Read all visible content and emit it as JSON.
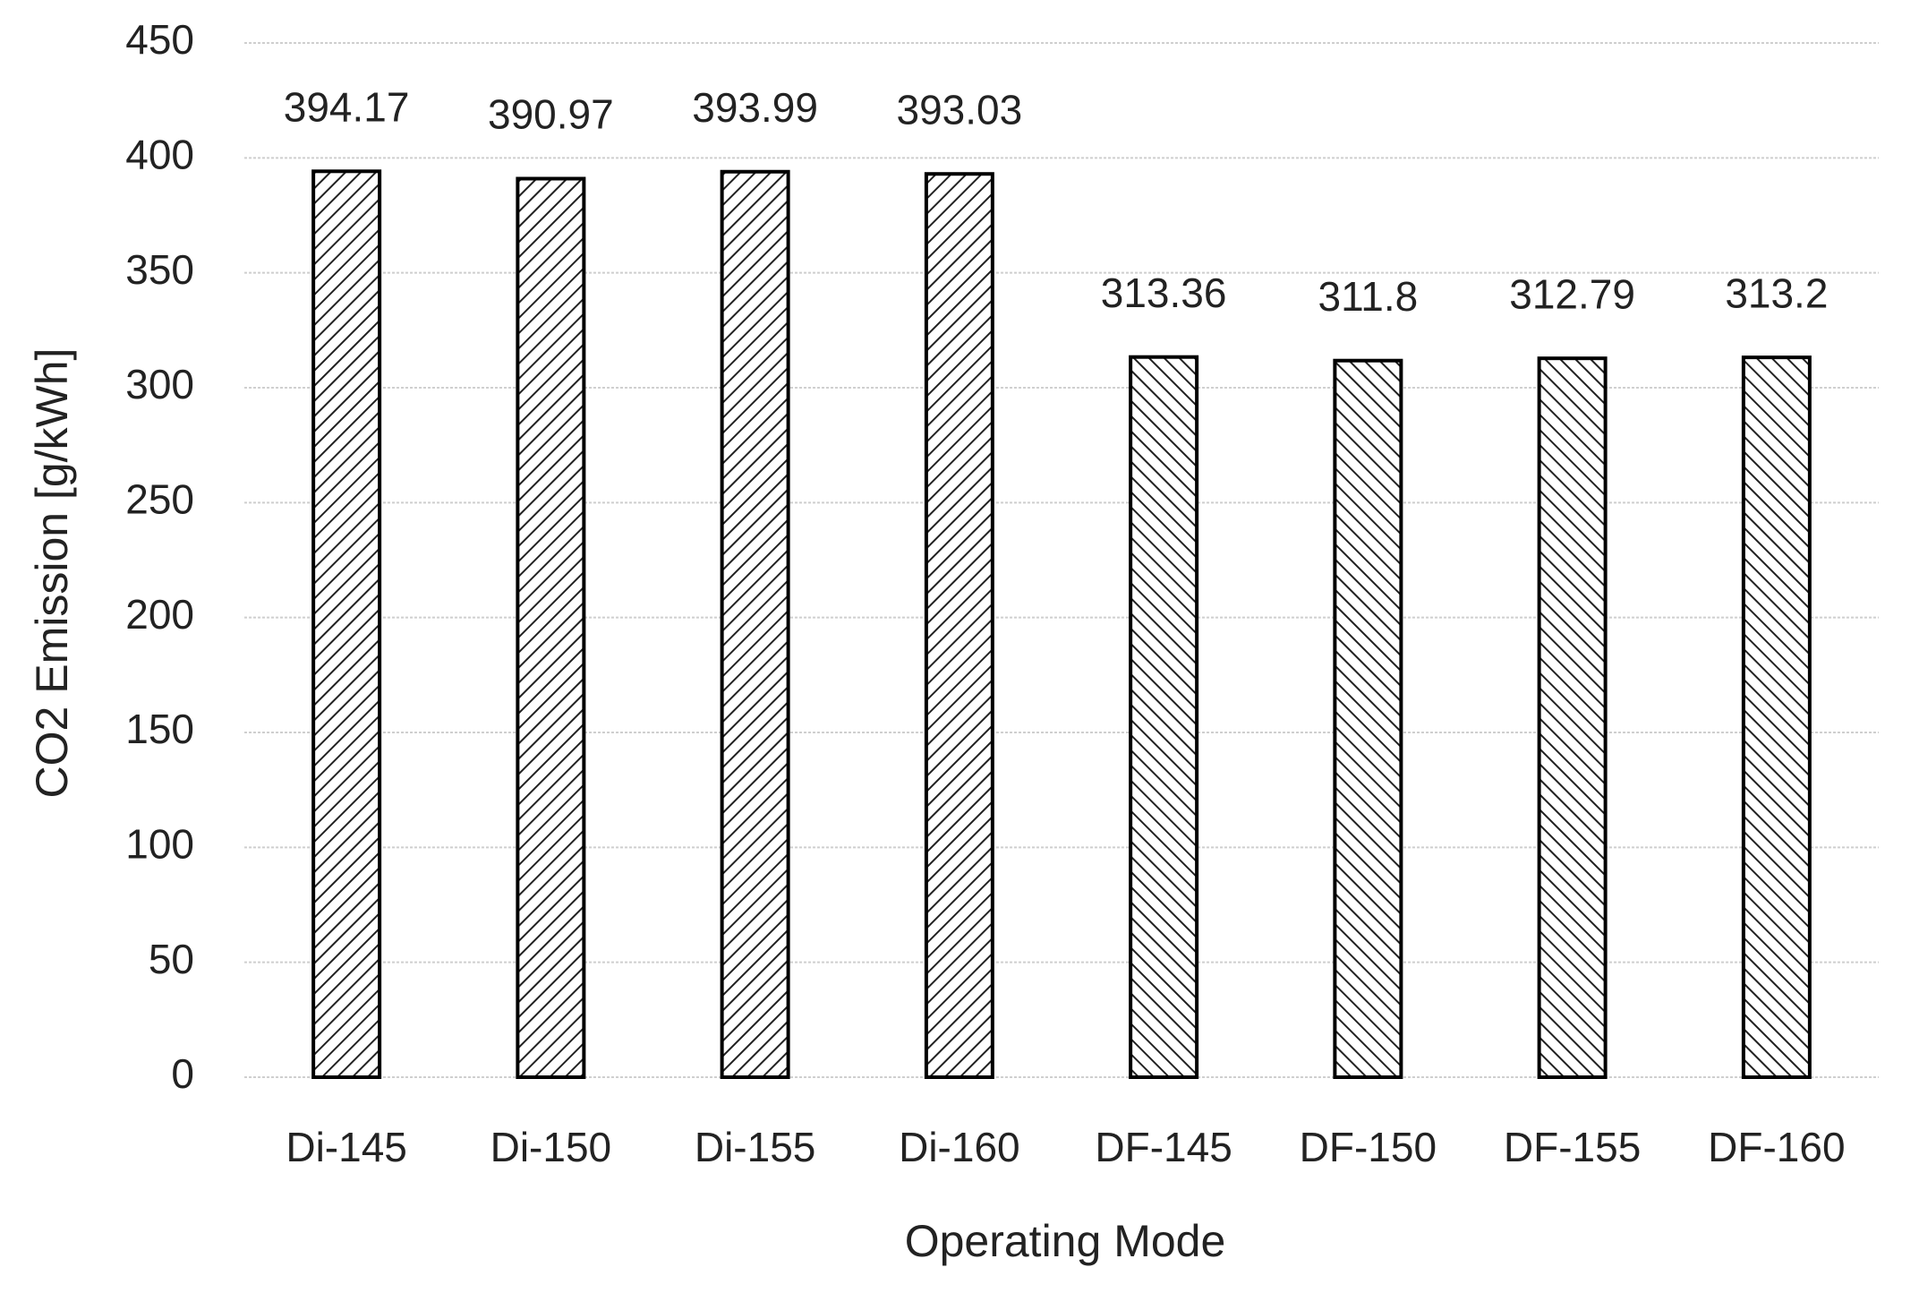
{
  "chart_data": {
    "type": "bar",
    "xlabel": "Operating Mode",
    "ylabel": "CO2 Emission [g/kWh]",
    "categories": [
      "Di-145",
      "Di-150",
      "Di-155",
      "Di-160",
      "DF-145",
      "DF-150",
      "DF-155",
      "DF-160"
    ],
    "values": [
      394.17,
      390.97,
      393.99,
      393.03,
      313.36,
      311.8,
      312.79,
      313.2
    ],
    "hatch": [
      "/",
      "/",
      "/",
      "/",
      "\\",
      "\\",
      "\\",
      "\\"
    ],
    "color": "#000000",
    "ylim": [
      0,
      450
    ],
    "yticks": [
      0,
      50,
      100,
      150,
      200,
      250,
      300,
      350,
      400,
      450
    ],
    "grid": true
  }
}
